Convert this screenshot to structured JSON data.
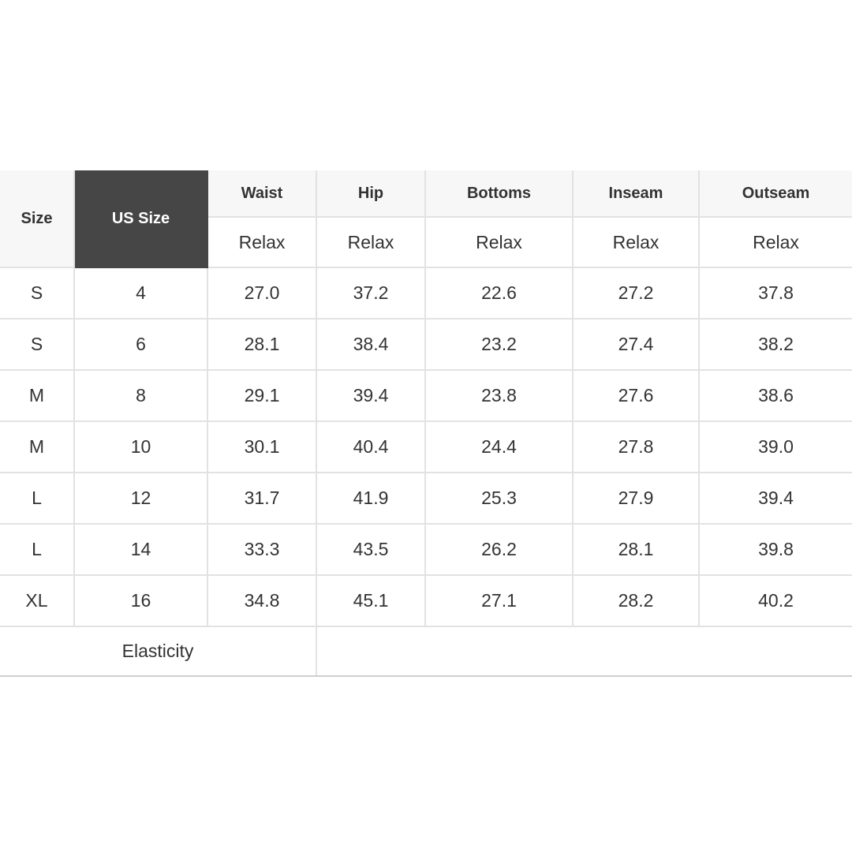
{
  "table": {
    "header": {
      "size": "Size",
      "us_size": "US Size",
      "measures": [
        "Waist",
        "Hip",
        "Bottoms",
        "Inseam",
        "Outseam"
      ],
      "sub": [
        "Relax",
        "Relax",
        "Relax",
        "Relax",
        "Relax"
      ]
    },
    "rows": [
      [
        "S",
        "4",
        "27.0",
        "37.2",
        "22.6",
        "27.2",
        "37.8"
      ],
      [
        "S",
        "6",
        "28.1",
        "38.4",
        "23.2",
        "27.4",
        "38.2"
      ],
      [
        "M",
        "8",
        "29.1",
        "39.4",
        "23.8",
        "27.6",
        "38.6"
      ],
      [
        "M",
        "10",
        "30.1",
        "40.4",
        "24.4",
        "27.8",
        "39.0"
      ],
      [
        "L",
        "12",
        "31.7",
        "41.9",
        "25.3",
        "27.9",
        "39.4"
      ],
      [
        "L",
        "14",
        "33.3",
        "43.5",
        "26.2",
        "28.1",
        "39.8"
      ],
      [
        "XL",
        "16",
        "34.8",
        "45.1",
        "27.1",
        "28.2",
        "40.2"
      ]
    ],
    "footer": {
      "label": "Elasticity",
      "value": ""
    },
    "colors": {
      "header_bg": "#f7f7f7",
      "highlight_bg": "#464646",
      "border": "#e2e2e2"
    }
  }
}
